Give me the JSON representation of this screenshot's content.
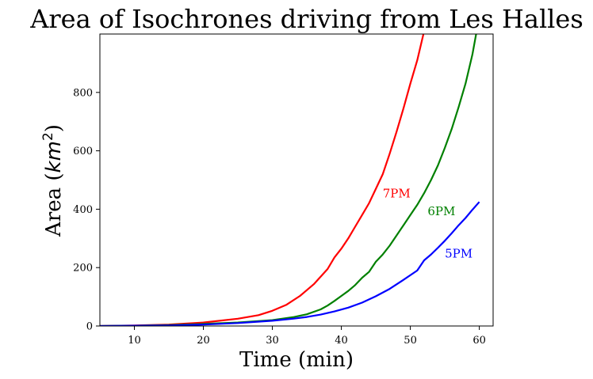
{
  "chart_data": {
    "type": "line",
    "title": "Area of Isochrones driving from Les Halles",
    "xlabel": "Time (min)",
    "ylabel_text": "Area (",
    "ylabel_math": "km",
    "ylabel_sup": "2",
    "ylabel_close": ")",
    "xlim": [
      5,
      62
    ],
    "ylim": [
      0,
      1000
    ],
    "xticks": [
      10,
      20,
      30,
      40,
      50,
      60
    ],
    "yticks": [
      0,
      200,
      400,
      600,
      800
    ],
    "grid": false,
    "legend": "none",
    "series": [
      {
        "name": "7PM",
        "color": "#ff0000",
        "annotation": {
          "text": "7PM",
          "x": 46,
          "y": 440
        },
        "x": [
          5,
          10,
          15,
          20,
          25,
          28,
          30,
          32,
          34,
          36,
          38,
          39,
          40,
          41,
          42,
          43,
          44,
          45,
          46,
          47,
          48,
          49,
          50,
          51,
          52,
          53
        ],
        "y": [
          0,
          2,
          5,
          12,
          25,
          37,
          52,
          72,
          103,
          143,
          195,
          235,
          265,
          300,
          340,
          380,
          420,
          470,
          520,
          590,
          665,
          745,
          830,
          910,
          1010,
          1100
        ]
      },
      {
        "name": "6PM",
        "color": "#008000",
        "annotation": {
          "text": "6PM",
          "x": 52.5,
          "y": 380
        },
        "x": [
          5,
          10,
          15,
          20,
          25,
          30,
          33,
          35,
          37,
          38,
          39,
          40,
          41,
          42,
          43,
          44,
          45,
          46,
          47,
          48,
          49,
          50,
          51,
          52,
          53,
          54,
          55,
          56,
          57,
          58,
          59,
          60
        ],
        "y": [
          0,
          1,
          3,
          7,
          12,
          20,
          30,
          40,
          57,
          70,
          86,
          103,
          120,
          140,
          165,
          185,
          220,
          245,
          275,
          310,
          345,
          380,
          415,
          455,
          500,
          550,
          610,
          675,
          750,
          830,
          930,
          1060
        ]
      },
      {
        "name": "5PM",
        "color": "#0000ff",
        "annotation": {
          "text": "5PM",
          "x": 55,
          "y": 235
        },
        "x": [
          5,
          10,
          15,
          20,
          25,
          30,
          33,
          35,
          37,
          39,
          41,
          43,
          45,
          47,
          49,
          51,
          52,
          53,
          54,
          55,
          56,
          57,
          58,
          59,
          60
        ],
        "y": [
          0,
          1,
          2,
          5,
          10,
          18,
          25,
          31,
          39,
          50,
          63,
          80,
          102,
          127,
          158,
          190,
          225,
          245,
          268,
          292,
          318,
          345,
          370,
          398,
          425
        ]
      }
    ]
  }
}
